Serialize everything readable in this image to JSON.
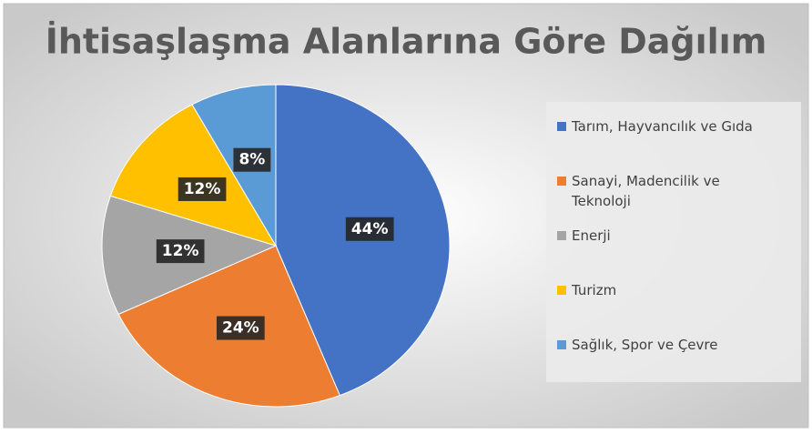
{
  "chart_data": {
    "type": "pie",
    "title": "İhtisaşlaşma Alanlarına Göre Dağılım",
    "categories": [
      "Tarım, Hayvancılık ve Gıda",
      "Sanayi, Madencilik ve Teknoloji",
      "Enerji",
      "Turizm",
      "Sağlık, Spor ve Çevre"
    ],
    "values": [
      44,
      24,
      12,
      12,
      8
    ],
    "value_labels": [
      "44%",
      "24%",
      "12%",
      "12%",
      "8%"
    ],
    "colors": [
      "#4472c4",
      "#ed7d31",
      "#a5a5a5",
      "#ffc000",
      "#5b9bd5"
    ],
    "legend": "right"
  }
}
